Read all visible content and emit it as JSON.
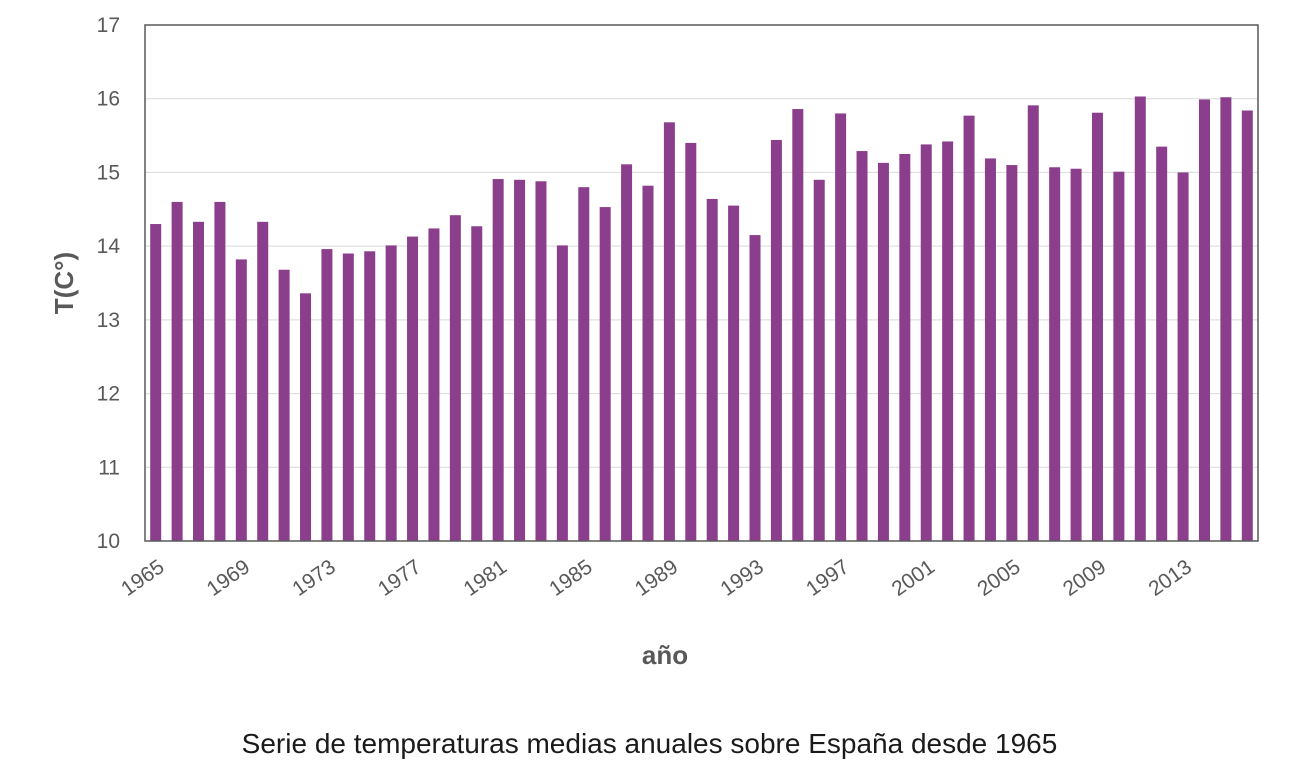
{
  "caption": "Serie de temperaturas medias anuales sobre España desde 1965",
  "chart_data": {
    "type": "bar",
    "xlabel": "año",
    "ylabel": "T(C°)",
    "ylim": [
      10,
      17
    ],
    "yticks": [
      10,
      11,
      12,
      13,
      14,
      15,
      16,
      17
    ],
    "grid": true,
    "bar_color": "#8a3e8c",
    "x_tick_labels": [
      "1965",
      "1969",
      "1973",
      "1977",
      "1981",
      "1985",
      "1989",
      "1993",
      "1997",
      "2001",
      "2005",
      "2009",
      "2013"
    ],
    "categories": [
      "1965",
      "1966",
      "1967",
      "1968",
      "1969",
      "1970",
      "1971",
      "1972",
      "1973",
      "1974",
      "1975",
      "1976",
      "1977",
      "1978",
      "1979",
      "1980",
      "1981",
      "1982",
      "1983",
      "1984",
      "1985",
      "1986",
      "1987",
      "1988",
      "1989",
      "1990",
      "1991",
      "1992",
      "1993",
      "1994",
      "1995",
      "1996",
      "1997",
      "1998",
      "1999",
      "2000",
      "2001",
      "2002",
      "2003",
      "2004",
      "2005",
      "2006",
      "2007",
      "2008",
      "2009",
      "2010",
      "2011",
      "2012",
      "2013",
      "2014",
      "2015",
      "2016"
    ],
    "values": [
      14.3,
      14.6,
      14.33,
      14.6,
      13.82,
      14.33,
      13.68,
      13.36,
      13.96,
      13.9,
      13.93,
      14.01,
      14.13,
      14.24,
      14.42,
      14.27,
      14.91,
      14.9,
      14.88,
      14.01,
      14.8,
      14.53,
      15.11,
      14.82,
      15.68,
      15.4,
      14.64,
      14.55,
      14.15,
      15.44,
      15.86,
      14.9,
      15.8,
      15.29,
      15.13,
      15.25,
      15.38,
      15.42,
      15.77,
      15.19,
      15.1,
      15.91,
      15.07,
      15.05,
      15.81,
      15.01,
      16.03,
      15.35,
      15.0,
      15.99,
      16.02,
      15.84
    ]
  }
}
